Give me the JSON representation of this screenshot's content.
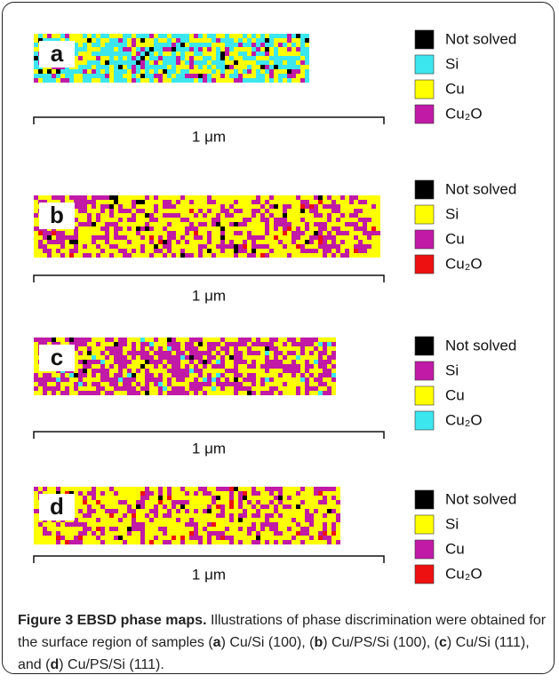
{
  "panels": [
    {
      "label": "a",
      "scale_bar": "1 μm",
      "legend": [
        {
          "name": "Not solved",
          "color": "#000000"
        },
        {
          "name": "Si",
          "color": "#3ce6ee"
        },
        {
          "name": "Cu",
          "color": "#ffff00"
        },
        {
          "name": "Cu₂O",
          "color": "#c01aa6"
        }
      ]
    },
    {
      "label": "b",
      "scale_bar": "1 μm",
      "legend": [
        {
          "name": "Not solved",
          "color": "#000000"
        },
        {
          "name": "Si",
          "color": "#ffff00"
        },
        {
          "name": "Cu",
          "color": "#c01aa6"
        },
        {
          "name": "Cu₂O",
          "color": "#ee1111"
        }
      ]
    },
    {
      "label": "c",
      "scale_bar": "1 μm",
      "legend": [
        {
          "name": "Not solved",
          "color": "#000000"
        },
        {
          "name": "Si",
          "color": "#c01aa6"
        },
        {
          "name": "Cu",
          "color": "#ffff00"
        },
        {
          "name": "Cu₂O",
          "color": "#3ce6ee"
        }
      ]
    },
    {
      "label": "d",
      "scale_bar": "1 μm",
      "legend": [
        {
          "name": "Not solved",
          "color": "#000000"
        },
        {
          "name": "Si",
          "color": "#ffff00"
        },
        {
          "name": "Cu",
          "color": "#c01aa6"
        },
        {
          "name": "Cu₂O",
          "color": "#ee1111"
        }
      ]
    }
  ],
  "caption": {
    "title": "Figure 3 EBSD phase maps.",
    "parts": [
      "Illustrations of phase discrimination were obtained for the surface region of samples (",
      "a",
      ") Cu/Si (100), (",
      "b",
      ") Cu/PS/Si (100), (",
      "c",
      ") Cu/Si (111), and (",
      "d",
      ") Cu/PS/Si (111)."
    ]
  }
}
